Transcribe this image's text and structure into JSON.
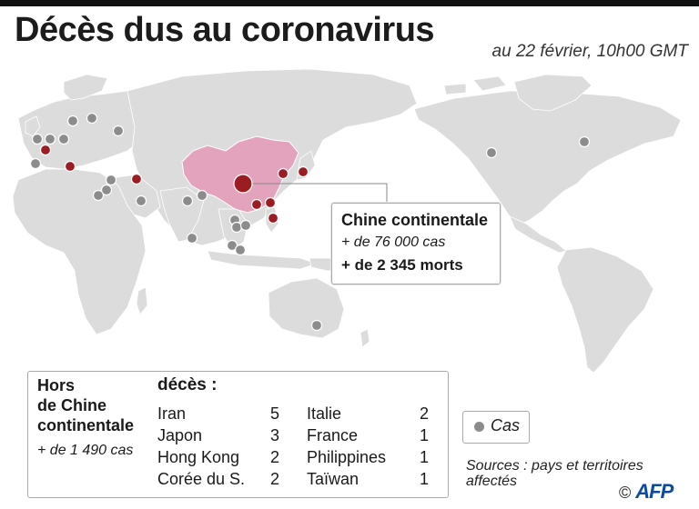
{
  "title": "Décès dus au coronavirus",
  "date": "au 22 février, 10h00 GMT",
  "colors": {
    "land": "#dcdcdc",
    "china": "#e4a3bc",
    "death_dot": "#9b1c22",
    "case_dot": "#8c8c8c",
    "box_border": "#a9a9a9"
  },
  "china_box": {
    "title": "Chine continentale",
    "cases": "+ de 76 000  cas",
    "deaths": "+ de 2 345 morts"
  },
  "outside": {
    "label": "Hors de Chine continentale",
    "label_lines": [
      "Hors",
      "de Chine",
      "continentale"
    ],
    "cases": "+ de 1 490 cas",
    "deaths_heading": "décès :",
    "deaths": [
      {
        "country": "Iran",
        "count": "5"
      },
      {
        "country": "Japon",
        "count": "3"
      },
      {
        "country": "Hong Kong",
        "count": "2"
      },
      {
        "country": "Corée du S.",
        "count": "2"
      },
      {
        "country": "Italie",
        "count": "2"
      },
      {
        "country": "France",
        "count": "1"
      },
      {
        "country": "Philippines",
        "count": "1"
      },
      {
        "country": "Taïwan",
        "count": "1"
      }
    ]
  },
  "legend": {
    "cases_label": "Cas",
    "cases_icon": "grey-dot"
  },
  "sources": "Sources : pays et territoires affectés",
  "credit": {
    "copyright": "©",
    "agency": "AFP"
  }
}
